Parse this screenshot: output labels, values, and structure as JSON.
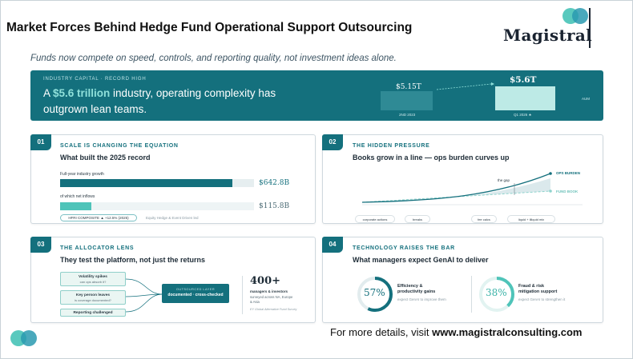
{
  "header": {
    "title": "Market Forces Behind Hedge Fund Operational Support Outsourcing",
    "logo_text": "Magistral"
  },
  "subtitle": "Funds now compete on speed, controls, and reporting quality, not investment ideas alone.",
  "banner": {
    "kicker": "INDUSTRY CAPITAL · RECORD HIGH",
    "headline_pre": "A ",
    "headline_highlight": "$5.6 trillion",
    "headline_post": " industry, operating complexity has outgrown lean teams.",
    "bar_old_value": "$5.15T",
    "bar_old_caption": "2ND 2023",
    "bar_new_value": "$5.6T",
    "bar_new_caption": "Q1 2026 ★",
    "side_note": "AUM"
  },
  "card1": {
    "number": "01",
    "kicker": "SCALE IS CHANGING THE EQUATION",
    "heading": "What built the 2025 record",
    "row1_label": "Full-year industry growth",
    "row1_value": "$642.8B",
    "row1_fraction": 0.89,
    "row2_label": "of which net inflows",
    "row2_value": "$115.8B",
    "row2_fraction": 0.16,
    "composite_pill": "HFRI COMPOSITE ▲ +12.5% (2025)",
    "source": "Equity Hedge & Event Driven led"
  },
  "card2": {
    "number": "02",
    "kicker": "THE HIDDEN PRESSURE",
    "heading": "Books grow in a line — ops burden curves up",
    "label_ops": "OPS BURDEN",
    "label_fund": "FUND BOOK",
    "label_gap": "the gap",
    "pills": [
      "corporate actions",
      "breaks",
      "fee calcs",
      "liquid + illiquid mix"
    ]
  },
  "card3": {
    "number": "03",
    "kicker": "THE ALLOCATOR LENS",
    "heading": "They test the platform, not just the returns",
    "items": [
      {
        "title": "Volatility spikes",
        "sub": "can ops absorb it?"
      },
      {
        "title": "Key person leaves",
        "sub": "is coverage documented?"
      },
      {
        "title": "Reporting challenged",
        "sub": ""
      }
    ],
    "outsourced_kicker": "OUTSOURCED LAYER",
    "outsourced_text": "documented · cross-checked",
    "stat_value": "400+",
    "stat_label": "managers & investors",
    "stat_sub": "surveyed across NA, Europe & Asia",
    "stat_source": "EY Global Alternative Fund Survey"
  },
  "card4": {
    "number": "04",
    "kicker": "TECHNOLOGY RAISES THE BAR",
    "heading": "What managers expect GenAI to deliver",
    "metric1_pct": "57%",
    "metric1_value": 0.57,
    "metric1_title_a": "Efficiency &",
    "metric1_title_b": "productivity gains",
    "metric1_sub": "expect GenAI to improve them",
    "metric2_pct": "38%",
    "metric2_value": 0.38,
    "metric2_title_a": "Fraud & risk",
    "metric2_title_b": "mitigation support",
    "metric2_sub": "expect GenAI to strengthen it"
  },
  "footer": {
    "text_pre": "For more details, visit ",
    "url": "www.magistralconsulting.com"
  },
  "colors": {
    "accent": "#14707d",
    "accent_light": "#8fe0da",
    "logo_teal": "#3cbfb3",
    "logo_blue": "#2a9ab0"
  }
}
